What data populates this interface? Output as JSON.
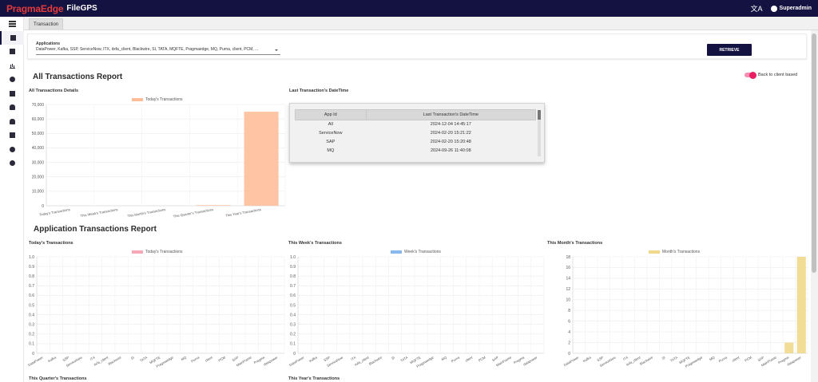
{
  "header": {
    "brand": "PragmaEdge",
    "product": "FileGPS",
    "user": "Superadmin"
  },
  "sidebar": {
    "icons": [
      "menu-icon",
      "dashboard-icon",
      "files-icon",
      "bar-chart-icon",
      "account-icon",
      "document-icon",
      "alert-icon",
      "notification-icon",
      "report-icon",
      "user-settings-icon",
      "group-icon"
    ]
  },
  "tabs": [
    {
      "label": "Transaction"
    }
  ],
  "filter": {
    "label": "Applications",
    "value": "DataPower, Kafka, SSP, ServiceNow, ITX, itxfa_client, Blackwire, SI, TATA, MQFTE, Pragmaedge, MQ, Purna, client, PCM, ...",
    "retrieve_label": "RETRIEVE"
  },
  "all_report": {
    "title": "All Transactions Report",
    "toggle_label": "Back to client based",
    "details_title": "All Transactions Details",
    "last_title": "Last Transaction's DateTime"
  },
  "last_table": {
    "headers": [
      "App Id",
      "Last Transaction's DateTime"
    ],
    "rows": [
      {
        "app": "All",
        "time": "2024-12-04 14:45:17"
      },
      {
        "app": "ServiceNow",
        "time": "2024-02-20 15:21:22"
      },
      {
        "app": "SAP",
        "time": "2024-02-20 15:20:48"
      },
      {
        "app": "MQ",
        "time": "2024-09-26 11:40:08"
      }
    ]
  },
  "app_report": {
    "title": "Application Transactions Report",
    "today_title": "Today's Transactions",
    "week_title": "This Week's Transactions",
    "month_title": "This Month's Transactions",
    "quarter_title": "This Quarter's Transactions",
    "year_title": "This Year's Transactions"
  },
  "colors": {
    "navy": "#141241",
    "brand_red": "#e23b3b",
    "orange": "#ffbe99",
    "pink": "#f7a7b8",
    "blue": "#8ab8ee",
    "yellow": "#f0d98a"
  },
  "chart_data": [
    {
      "type": "bar",
      "legend": "Today's Transactions",
      "categories": [
        "Today's Transactions",
        "This Week's Transactions",
        "This Month's Transactions",
        "This Quarter's Transactions",
        "This Year's Transactions"
      ],
      "values": [
        0,
        0,
        0,
        400,
        65000
      ],
      "y_ticks": [
        "0",
        "10,000",
        "20,000",
        "30,000",
        "40,000",
        "50,000",
        "60,000",
        "70,000"
      ],
      "ylim": [
        0,
        70000
      ]
    },
    {
      "type": "bar",
      "legend": "Today's Transactions",
      "categories": [
        "DataPower",
        "Kafka",
        "SSP",
        "ServiceNow",
        "ITX",
        "itxfa_client",
        "Blackwire",
        "SI",
        "TATA",
        "MQFTE",
        "Pragmaedge",
        "MQ",
        "Purna",
        "client",
        "PCM",
        "SAP",
        "MainFrame",
        "Pragma",
        "datapower"
      ],
      "values": [
        0,
        0,
        0,
        0,
        0,
        0,
        0,
        0,
        0,
        0,
        0,
        0,
        0,
        0,
        0,
        0,
        0,
        0,
        0
      ],
      "y_ticks": [
        "0",
        "0.1",
        "0.2",
        "0.3",
        "0.4",
        "0.5",
        "0.6",
        "0.7",
        "0.8",
        "0.9",
        "1.0"
      ],
      "ylim": [
        0,
        1
      ]
    },
    {
      "type": "bar",
      "legend": "Week's Transactions",
      "categories": [
        "DataPower",
        "Kafka",
        "SSP",
        "ServiceNow",
        "ITX",
        "itxfa_client",
        "Blackwire",
        "SI",
        "TATA",
        "MQFTE",
        "Pragmaedge",
        "MQ",
        "Purna",
        "client",
        "PCM",
        "SAP",
        "MainFrame",
        "Pragma",
        "datapower"
      ],
      "values": [
        0,
        0,
        0,
        0,
        0,
        0,
        0,
        0,
        0,
        0,
        0,
        0,
        0,
        0,
        0,
        0,
        0,
        0,
        0
      ],
      "y_ticks": [
        "0",
        "0.1",
        "0.2",
        "0.3",
        "0.4",
        "0.5",
        "0.6",
        "0.7",
        "0.8",
        "0.9",
        "1.0"
      ],
      "ylim": [
        0,
        1
      ]
    },
    {
      "type": "bar",
      "legend": "Month's Transactions",
      "categories": [
        "DataPower",
        "Kafka",
        "SSP",
        "ServiceNow",
        "ITX",
        "itxfa_client",
        "Blackwire",
        "SI",
        "TATA",
        "MQFTE",
        "Pragmaedge",
        "MQ",
        "Purna",
        "client",
        "PCM",
        "SAP",
        "MainFrame",
        "Pragma",
        "datapower"
      ],
      "values": [
        0,
        0,
        0,
        0,
        0,
        0,
        0,
        0,
        0,
        0,
        0,
        0,
        0,
        0,
        0,
        0,
        0,
        2,
        18
      ],
      "y_ticks": [
        "0",
        "2",
        "4",
        "6",
        "8",
        "10",
        "12",
        "14",
        "16",
        "18"
      ],
      "ylim": [
        0,
        18
      ]
    }
  ]
}
